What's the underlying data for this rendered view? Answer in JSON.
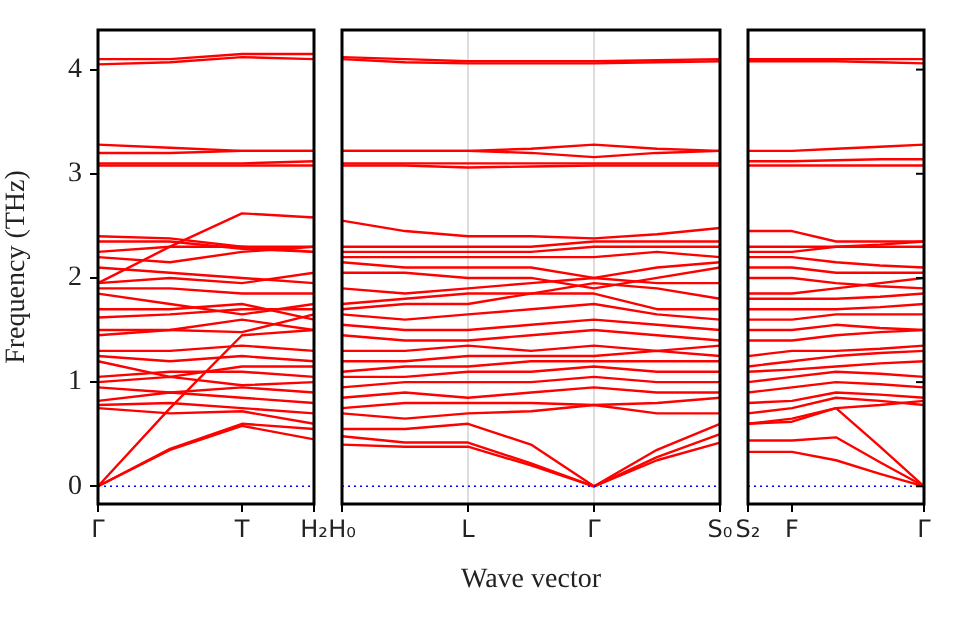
{
  "chart_data": [
    {
      "type": "line",
      "ylabel": "Frequency (THz)",
      "categories": [
        "Γ",
        null,
        "T",
        "H₂"
      ],
      "ylim": [
        -0.17,
        4.38
      ],
      "yticks": [
        0,
        1,
        2,
        3,
        4
      ],
      "grid": false,
      "legend": false,
      "marker": "none",
      "line_style": "solid",
      "ref_lines": [
        {
          "axis": "y",
          "value": 0,
          "color": "#0000ff",
          "line_style": "dotted"
        }
      ],
      "series": [
        {
          "color": "#ff0000",
          "values": [
            0,
            0.35,
            0.58,
            0.45
          ]
        },
        {
          "color": "#ff0000",
          "values": [
            0,
            0.36,
            0.6,
            0.55
          ]
        },
        {
          "color": "#ff0000",
          "values": [
            0,
            0.75,
            1.45,
            1.5
          ]
        },
        {
          "color": "#ff0000",
          "values": [
            0.75,
            0.7,
            0.72,
            0.6
          ]
        },
        {
          "color": "#ff0000",
          "values": [
            0.78,
            0.8,
            0.75,
            0.7
          ]
        },
        {
          "color": "#ff0000",
          "values": [
            0.82,
            0.9,
            0.85,
            0.8
          ]
        },
        {
          "color": "#ff0000",
          "values": [
            0.95,
            0.9,
            0.95,
            0.9
          ]
        },
        {
          "color": "#ff0000",
          "values": [
            1.0,
            1.05,
            0.97,
            1.0
          ]
        },
        {
          "color": "#ff0000",
          "values": [
            1.05,
            1.1,
            1.1,
            1.05
          ]
        },
        {
          "color": "#ff0000",
          "values": [
            1.2,
            1.05,
            1.15,
            1.15
          ]
        },
        {
          "color": "#ff0000",
          "values": [
            1.25,
            1.2,
            1.25,
            1.2
          ]
        },
        {
          "color": "#ff0000",
          "values": [
            1.3,
            1.3,
            1.35,
            1.3
          ]
        },
        {
          "color": "#ff0000",
          "values": [
            1.45,
            1.5,
            1.6,
            1.5
          ]
        },
        {
          "color": "#ff0000",
          "values": [
            1.5,
            1.5,
            1.48,
            1.65
          ]
        },
        {
          "color": "#ff0000",
          "values": [
            1.62,
            1.65,
            1.7,
            1.7
          ]
        },
        {
          "color": "#ff0000",
          "values": [
            1.7,
            1.7,
            1.75,
            1.6
          ]
        },
        {
          "color": "#ff0000",
          "values": [
            1.85,
            1.75,
            1.65,
            1.75
          ]
        },
        {
          "color": "#ff0000",
          "values": [
            1.9,
            1.9,
            1.85,
            1.85
          ]
        },
        {
          "color": "#ff0000",
          "values": [
            1.95,
            2.0,
            1.95,
            2.05
          ]
        },
        {
          "color": "#ff0000",
          "values": [
            1.95,
            2.3,
            2.62,
            2.58
          ]
        },
        {
          "color": "#ff0000",
          "values": [
            2.1,
            2.05,
            2.0,
            1.95
          ]
        },
        {
          "color": "#ff0000",
          "values": [
            2.2,
            2.15,
            2.25,
            2.3
          ]
        },
        {
          "color": "#ff0000",
          "values": [
            2.25,
            2.3,
            2.3,
            2.25
          ]
        },
        {
          "color": "#ff0000",
          "values": [
            2.35,
            2.35,
            2.28,
            2.25
          ]
        },
        {
          "color": "#ff0000",
          "values": [
            2.4,
            2.38,
            2.3,
            2.3
          ]
        },
        {
          "color": "#ff0000",
          "values": [
            3.08,
            3.08,
            3.08,
            3.08
          ]
        },
        {
          "color": "#ff0000",
          "values": [
            3.1,
            3.1,
            3.1,
            3.12
          ]
        },
        {
          "color": "#ff0000",
          "values": [
            3.2,
            3.2,
            3.22,
            3.22
          ]
        },
        {
          "color": "#ff0000",
          "values": [
            3.28,
            3.25,
            3.22,
            3.22
          ]
        },
        {
          "color": "#ff0000",
          "values": [
            4.05,
            4.07,
            4.12,
            4.1
          ]
        },
        {
          "color": "#ff0000",
          "values": [
            4.1,
            4.1,
            4.15,
            4.15
          ]
        }
      ]
    },
    {
      "type": "line",
      "xlabel": "Wave vector",
      "categories": [
        "H₀",
        null,
        "L",
        null,
        "Γ",
        null,
        "S₀"
      ],
      "ylim": [
        -0.17,
        4.38
      ],
      "tick_labels": "x",
      "grid": "x",
      "legend": false,
      "marker": "none",
      "line_style": "solid",
      "ref_lines": [
        {
          "axis": "y",
          "value": 0,
          "color": "#0000ff",
          "line_style": "dotted"
        }
      ],
      "series": [
        {
          "color": "#ff0000",
          "values": [
            0.4,
            0.38,
            0.38,
            0.2,
            0,
            0.25,
            0.42
          ]
        },
        {
          "color": "#ff0000",
          "values": [
            0.48,
            0.42,
            0.42,
            0.22,
            0,
            0.28,
            0.5
          ]
        },
        {
          "color": "#ff0000",
          "values": [
            0.55,
            0.55,
            0.6,
            0.4,
            0,
            0.35,
            0.6
          ]
        },
        {
          "color": "#ff0000",
          "values": [
            0.7,
            0.65,
            0.7,
            0.72,
            0.78,
            0.7,
            0.7
          ]
        },
        {
          "color": "#ff0000",
          "values": [
            0.75,
            0.8,
            0.8,
            0.8,
            0.78,
            0.8,
            0.85
          ]
        },
        {
          "color": "#ff0000",
          "values": [
            0.85,
            0.9,
            0.85,
            0.9,
            0.95,
            0.9,
            0.9
          ]
        },
        {
          "color": "#ff0000",
          "values": [
            0.95,
            1.0,
            1.0,
            1.0,
            1.05,
            1.0,
            1.0
          ]
        },
        {
          "color": "#ff0000",
          "values": [
            1.05,
            1.05,
            1.1,
            1.1,
            1.15,
            1.1,
            1.1
          ]
        },
        {
          "color": "#ff0000",
          "values": [
            1.1,
            1.15,
            1.15,
            1.2,
            1.2,
            1.2,
            1.2
          ]
        },
        {
          "color": "#ff0000",
          "values": [
            1.2,
            1.2,
            1.25,
            1.25,
            1.25,
            1.3,
            1.25
          ]
        },
        {
          "color": "#ff0000",
          "values": [
            1.3,
            1.3,
            1.35,
            1.3,
            1.35,
            1.3,
            1.35
          ]
        },
        {
          "color": "#ff0000",
          "values": [
            1.45,
            1.4,
            1.4,
            1.45,
            1.5,
            1.45,
            1.4
          ]
        },
        {
          "color": "#ff0000",
          "values": [
            1.55,
            1.5,
            1.5,
            1.55,
            1.6,
            1.55,
            1.5
          ]
        },
        {
          "color": "#ff0000",
          "values": [
            1.65,
            1.6,
            1.65,
            1.7,
            1.75,
            1.65,
            1.6
          ]
        },
        {
          "color": "#ff0000",
          "values": [
            1.7,
            1.75,
            1.75,
            1.85,
            1.85,
            1.7,
            1.7
          ]
        },
        {
          "color": "#ff0000",
          "values": [
            1.75,
            1.8,
            1.85,
            1.85,
            1.95,
            1.9,
            1.8
          ]
        },
        {
          "color": "#ff0000",
          "values": [
            1.9,
            1.85,
            1.9,
            1.95,
            2.0,
            1.95,
            1.95
          ]
        },
        {
          "color": "#ff0000",
          "values": [
            2.05,
            2.05,
            2.0,
            2.0,
            1.9,
            2.0,
            2.1
          ]
        },
        {
          "color": "#ff0000",
          "values": [
            2.15,
            2.1,
            2.1,
            2.1,
            2.0,
            2.1,
            2.15
          ]
        },
        {
          "color": "#ff0000",
          "values": [
            2.2,
            2.2,
            2.2,
            2.2,
            2.2,
            2.25,
            2.2
          ]
        },
        {
          "color": "#ff0000",
          "values": [
            2.25,
            2.25,
            2.25,
            2.25,
            2.3,
            2.3,
            2.3
          ]
        },
        {
          "color": "#ff0000",
          "values": [
            2.3,
            2.3,
            2.3,
            2.3,
            2.35,
            2.35,
            2.35
          ]
        },
        {
          "color": "#ff0000",
          "values": [
            2.55,
            2.45,
            2.4,
            2.4,
            2.38,
            2.42,
            2.48
          ]
        },
        {
          "color": "#ff0000",
          "values": [
            3.08,
            3.08,
            3.06,
            3.07,
            3.08,
            3.08,
            3.08
          ]
        },
        {
          "color": "#ff0000",
          "values": [
            3.1,
            3.1,
            3.1,
            3.1,
            3.1,
            3.1,
            3.1
          ]
        },
        {
          "color": "#ff0000",
          "values": [
            3.22,
            3.22,
            3.22,
            3.24,
            3.28,
            3.24,
            3.22
          ]
        },
        {
          "color": "#ff0000",
          "values": [
            3.22,
            3.22,
            3.22,
            3.2,
            3.16,
            3.2,
            3.22
          ]
        },
        {
          "color": "#ff0000",
          "values": [
            4.1,
            4.07,
            4.06,
            4.06,
            4.06,
            4.07,
            4.08
          ]
        },
        {
          "color": "#ff0000",
          "values": [
            4.12,
            4.1,
            4.08,
            4.08,
            4.08,
            4.09,
            4.1
          ]
        }
      ]
    },
    {
      "type": "line",
      "categories": [
        "S₂",
        "F",
        null,
        null,
        "Γ"
      ],
      "ylim": [
        -0.17,
        4.38
      ],
      "yticks": [
        {
          "value": 0,
          "label": null
        },
        {
          "value": 1,
          "label": null
        },
        {
          "value": 2,
          "label": null
        },
        {
          "value": 3,
          "label": null
        },
        {
          "value": 4,
          "label": null
        }
      ],
      "tick_labels": "x",
      "grid": false,
      "legend": false,
      "marker": "none",
      "line_style": "solid",
      "ref_lines": [
        {
          "axis": "y",
          "value": 0,
          "color": "#0000ff",
          "line_style": "dotted"
        }
      ],
      "series": [
        {
          "color": "#ff0000",
          "values": [
            0.33,
            0.33,
            0.25,
            0.12,
            0
          ]
        },
        {
          "color": "#ff0000",
          "values": [
            0.44,
            0.44,
            0.47,
            0.23,
            0
          ]
        },
        {
          "color": "#ff0000",
          "values": [
            0.6,
            0.62,
            0.75,
            0.38,
            0
          ]
        },
        {
          "color": "#ff0000",
          "values": [
            0.6,
            0.65,
            0.75,
            0.78,
            0.82
          ]
        },
        {
          "color": "#ff0000",
          "values": [
            0.7,
            0.75,
            0.85,
            0.82,
            0.78
          ]
        },
        {
          "color": "#ff0000",
          "values": [
            0.8,
            0.82,
            0.9,
            0.88,
            0.85
          ]
        },
        {
          "color": "#ff0000",
          "values": [
            0.9,
            0.95,
            1.0,
            0.98,
            0.95
          ]
        },
        {
          "color": "#ff0000",
          "values": [
            1.0,
            1.05,
            1.1,
            1.08,
            1.05
          ]
        },
        {
          "color": "#ff0000",
          "values": [
            1.1,
            1.12,
            1.15,
            1.18,
            1.2
          ]
        },
        {
          "color": "#ff0000",
          "values": [
            1.15,
            1.2,
            1.25,
            1.28,
            1.3
          ]
        },
        {
          "color": "#ff0000",
          "values": [
            1.25,
            1.3,
            1.3,
            1.32,
            1.35
          ]
        },
        {
          "color": "#ff0000",
          "values": [
            1.4,
            1.4,
            1.45,
            1.48,
            1.5
          ]
        },
        {
          "color": "#ff0000",
          "values": [
            1.5,
            1.5,
            1.55,
            1.52,
            1.5
          ]
        },
        {
          "color": "#ff0000",
          "values": [
            1.6,
            1.6,
            1.65,
            1.65,
            1.65
          ]
        },
        {
          "color": "#ff0000",
          "values": [
            1.7,
            1.7,
            1.7,
            1.72,
            1.75
          ]
        },
        {
          "color": "#ff0000",
          "values": [
            1.8,
            1.8,
            1.8,
            1.82,
            1.85
          ]
        },
        {
          "color": "#ff0000",
          "values": [
            1.85,
            1.85,
            1.9,
            1.95,
            2.0
          ]
        },
        {
          "color": "#ff0000",
          "values": [
            2.0,
            2.0,
            1.95,
            1.92,
            1.9
          ]
        },
        {
          "color": "#ff0000",
          "values": [
            2.1,
            2.1,
            2.05,
            2.05,
            2.05
          ]
        },
        {
          "color": "#ff0000",
          "values": [
            2.2,
            2.2,
            2.15,
            2.12,
            2.1
          ]
        },
        {
          "color": "#ff0000",
          "values": [
            2.25,
            2.25,
            2.3,
            2.3,
            2.3
          ]
        },
        {
          "color": "#ff0000",
          "values": [
            2.3,
            2.3,
            2.3,
            2.32,
            2.35
          ]
        },
        {
          "color": "#ff0000",
          "values": [
            2.45,
            2.45,
            2.35,
            2.35,
            2.35
          ]
        },
        {
          "color": "#ff0000",
          "values": [
            3.08,
            3.08,
            3.08,
            3.08,
            3.08
          ]
        },
        {
          "color": "#ff0000",
          "values": [
            3.12,
            3.12,
            3.13,
            3.14,
            3.14
          ]
        },
        {
          "color": "#ff0000",
          "values": [
            3.22,
            3.22,
            3.24,
            3.26,
            3.28
          ]
        },
        {
          "color": "#ff0000",
          "values": [
            4.08,
            4.08,
            4.08,
            4.07,
            4.06
          ]
        },
        {
          "color": "#ff0000",
          "values": [
            4.1,
            4.1,
            4.1,
            4.1,
            4.1
          ]
        }
      ]
    }
  ]
}
